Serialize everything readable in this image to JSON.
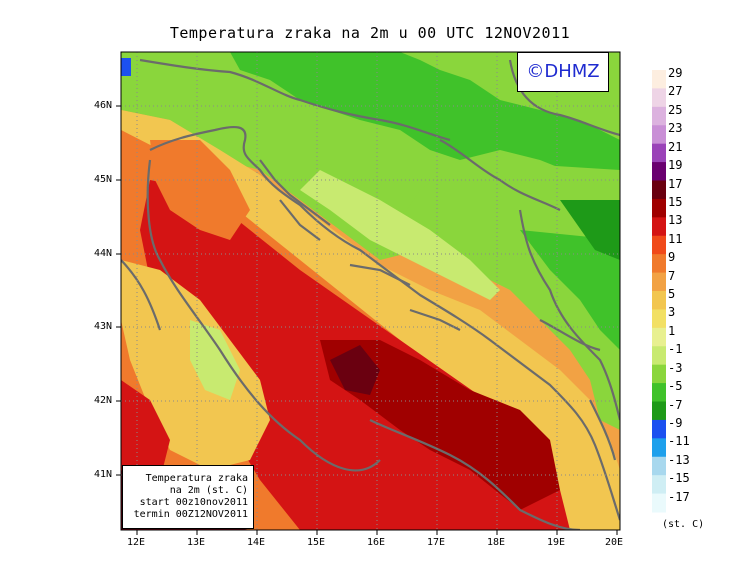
{
  "title": "Temperatura zraka na 2m u 00 UTC 12NOV2011",
  "logo": "©DHMZ",
  "info": {
    "line1": "Temperatura zraka",
    "line2": "na 2m (st. C)",
    "line3": "start 00z10nov2011",
    "line4": "termin 00Z12NOV2011"
  },
  "colorbar": {
    "unit": "(st. C)",
    "labels": [
      "29",
      "27",
      "25",
      "23",
      "21",
      "19",
      "17",
      "15",
      "13",
      "11",
      "9",
      "7",
      "5",
      "3",
      "1",
      "-1",
      "-3",
      "-5",
      "-7",
      "-9",
      "-11",
      "-13",
      "-15",
      "-17"
    ],
    "colors": [
      "#fdeee0",
      "#eed4e6",
      "#dcb2df",
      "#c98fd6",
      "#9a43b8",
      "#6a0070",
      "#6a0010",
      "#a00000",
      "#d41414",
      "#f04a1a",
      "#f07a2c",
      "#f2a244",
      "#f2c650",
      "#f2e064",
      "#e8f090",
      "#c8ea70",
      "#8ad63c",
      "#40c22a",
      "#1e9a18",
      "#1c50f0",
      "#1ea0ec",
      "#a8d8ee",
      "#cfeef4",
      "#eafafc"
    ]
  },
  "axes": {
    "lat_labels": [
      "46N",
      "45N",
      "44N",
      "43N",
      "42N",
      "41N"
    ],
    "lon_labels": [
      "12E",
      "13E",
      "14E",
      "15E",
      "16E",
      "17E",
      "18E",
      "19E",
      "20E"
    ]
  }
}
